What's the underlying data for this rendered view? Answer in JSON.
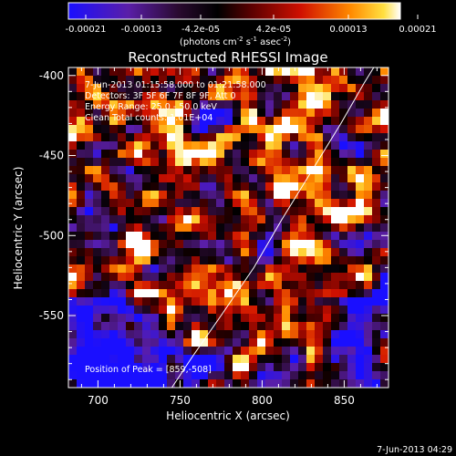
{
  "title": "Reconstructed RHESSI Image",
  "colorbar": {
    "tick_labels": [
      "-0.00021",
      "-0.00013",
      "-4.2e-05",
      "4.2e-05",
      "0.00013",
      "0.00021"
    ],
    "units_line1": "(photons cm",
    "units_exp1": "-2",
    "units_line2": " s",
    "units_exp2": "-1",
    "units_line3": " asec",
    "units_exp3": "-2",
    "units_close": ")"
  },
  "info": {
    "line1": "7-Jun-2013 01:15:58.000 to 01:21:58.000",
    "line2": "Detectors: 3F 5F 6F 7F 8F 9F, Att 0",
    "line3": "Energy Range: 25.0 - 50.0 keV",
    "line4": "Clean    Total counts: 1.01E+04",
    "peak": "Position of Peak = [859,-508]"
  },
  "footer_date": "7-Jun-2013 04:29",
  "chart_data": {
    "type": "heatmap",
    "title": "Reconstructed RHESSI Image",
    "xlabel": "Heliocentric X (arcsec)",
    "ylabel": "Heliocentric Y (arcsec)",
    "xlim": [
      682,
      877
    ],
    "ylim": [
      -595,
      -395
    ],
    "x_ticks": [
      700,
      750,
      800,
      850
    ],
    "y_ticks": [
      -400,
      -450,
      -500,
      -550
    ],
    "colorbar_range": [
      -0.00021,
      0.00021
    ],
    "colormap": "hot-with-blue-negative",
    "limb_curve": [
      [
        745,
        -595
      ],
      [
        758,
        -575
      ],
      [
        775,
        -550
      ],
      [
        795,
        -520
      ],
      [
        812,
        -490
      ],
      [
        830,
        -460
      ],
      [
        848,
        -430
      ],
      [
        862,
        -405
      ],
      [
        868,
        -395
      ]
    ],
    "peak": [
      859,
      -508
    ]
  }
}
